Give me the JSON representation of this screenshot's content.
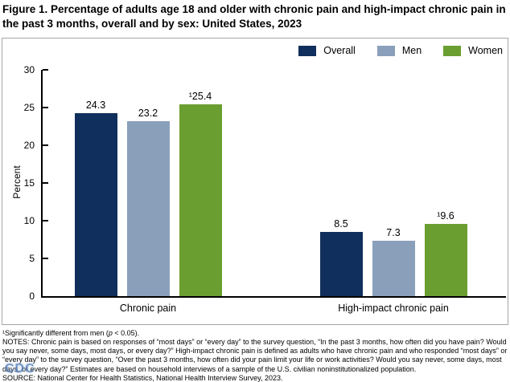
{
  "title": "Figure 1. Percentage of adults age 18 and older with chronic pain and high-impact chronic pain in the past 3 months, overall and by sex: United States, 2023",
  "chart_data": {
    "type": "bar",
    "title": "Figure 1. Percentage of adults age 18 and older with chronic pain and high-impact chronic pain in the past 3 months, overall and by sex: United States, 2023",
    "categories": [
      "Chronic pain",
      "High-impact chronic pain"
    ],
    "series": [
      {
        "name": "Overall",
        "color": "#112f5c",
        "values": [
          24.3,
          8.5
        ],
        "labels": [
          "24.3",
          "8.5"
        ]
      },
      {
        "name": "Men",
        "color": "#8a9fba",
        "values": [
          23.2,
          7.3
        ],
        "labels": [
          "23.2",
          "7.3"
        ]
      },
      {
        "name": "Women",
        "color": "#6b9e30",
        "values": [
          25.4,
          9.6
        ],
        "labels": [
          "¹25.4",
          "¹9.6"
        ]
      }
    ],
    "xlabel": "",
    "ylabel": "Percent",
    "ylim": [
      0,
      30
    ],
    "yticks": [
      0,
      5,
      10,
      15,
      20,
      25,
      30
    ],
    "grid": false,
    "legend_position": "top-right",
    "annotation_note": "¹ denotes significantly different from men"
  },
  "footnotes": {
    "sig_pre": "¹Significantly different from men (",
    "sig_p": "p",
    "sig_post": " < 0.05).",
    "notes": "NOTES: Chronic pain is based on responses of “most days” or “every day” to the survey question, “In the past 3 months, how often did you have pain? Would you say never, some days, most days, or every day?” High-impact chronic pain is defined as adults who have chronic pain and who responded “most days” or “every day” to the survey question, “Over the past 3 months, how often did your pain limit your life or work activities? Would you say never, some days, most days, or every day?” Estimates are based on household interviews of a sample of the U.S. civilian noninstitutionalized population.",
    "source": "SOURCE: National Center for Health Statistics, National Health Interview Survey, 2023."
  },
  "watermark": "CDC"
}
